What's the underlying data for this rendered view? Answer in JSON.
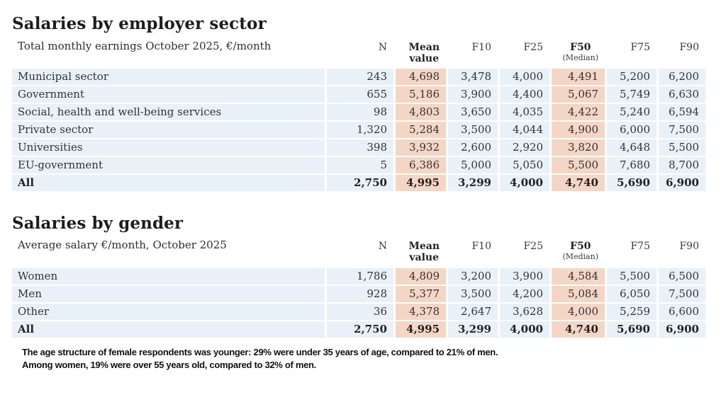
{
  "colors": {
    "row_bg": "#e9f1f8",
    "highlight_bg": "#f5d6c5",
    "text": "#333333",
    "title": "#1c1c1c",
    "footnote": "#111111"
  },
  "columns": {
    "n": "N",
    "mean_line1": "Mean",
    "mean_line2": "value",
    "f10": "F10",
    "f25": "F25",
    "f50": "F50",
    "f50_sub": "(Median)",
    "f75": "F75",
    "f90": "F90"
  },
  "sector_table": {
    "title": "Salaries by employer sector",
    "subtitle": "Total monthly earnings October 2025, €/month",
    "rows": [
      {
        "label": "Municipal sector",
        "n": "243",
        "mean": "4,698",
        "f10": "3,478",
        "f25": "4,000",
        "f50": "4,491",
        "f75": "5,200",
        "f90": "6,200"
      },
      {
        "label": "Government",
        "n": "655",
        "mean": "5,186",
        "f10": "3,900",
        "f25": "4,400",
        "f50": "5,067",
        "f75": "5,749",
        "f90": "6,630"
      },
      {
        "label": "Social, health and well-being services",
        "n": "98",
        "mean": "4,803",
        "f10": "3,650",
        "f25": "4,035",
        "f50": "4,422",
        "f75": "5,240",
        "f90": "6,594"
      },
      {
        "label": "Private sector",
        "n": "1,320",
        "mean": "5,284",
        "f10": "3,500",
        "f25": "4,044",
        "f50": "4,900",
        "f75": "6,000",
        "f90": "7,500"
      },
      {
        "label": "Universities",
        "n": "398",
        "mean": "3,932",
        "f10": "2,600",
        "f25": "2,920",
        "f50": "3,820",
        "f75": "4,648",
        "f90": "5,500"
      },
      {
        "label": "EU-government",
        "n": "5",
        "mean": "6,386",
        "f10": "5,000",
        "f25": "5,050",
        "f50": "5,500",
        "f75": "7,680",
        "f90": "8,700"
      },
      {
        "label": "All",
        "n": "2,750",
        "mean": "4,995",
        "f10": "3,299",
        "f25": "4,000",
        "f50": "4,740",
        "f75": "5,690",
        "f90": "6,900"
      }
    ]
  },
  "gender_table": {
    "title": "Salaries by gender",
    "subtitle": "Average salary €/month, October 2025",
    "rows": [
      {
        "label": "Women",
        "n": "1,786",
        "mean": "4,809",
        "f10": "3,200",
        "f25": "3,900",
        "f50": "4,584",
        "f75": "5,500",
        "f90": "6,500"
      },
      {
        "label": "Men",
        "n": "928",
        "mean": "5,377",
        "f10": "3,500",
        "f25": "4,200",
        "f50": "5,084",
        "f75": "6,050",
        "f90": "7,500"
      },
      {
        "label": "Other",
        "n": "36",
        "mean": "4,378",
        "f10": "2,647",
        "f25": "3,628",
        "f50": "4,000",
        "f75": "5,259",
        "f90": "6,600"
      },
      {
        "label": "All",
        "n": "2,750",
        "mean": "4,995",
        "f10": "3,299",
        "f25": "4,000",
        "f50": "4,740",
        "f75": "5,690",
        "f90": "6,900"
      }
    ]
  },
  "footnote": {
    "line1": "The age structure of female respondents was younger: 29% were under 35 years of age, compared to 21% of men.",
    "line2": "Among women, 19% were over 55 years old, compared to 32% of men."
  }
}
